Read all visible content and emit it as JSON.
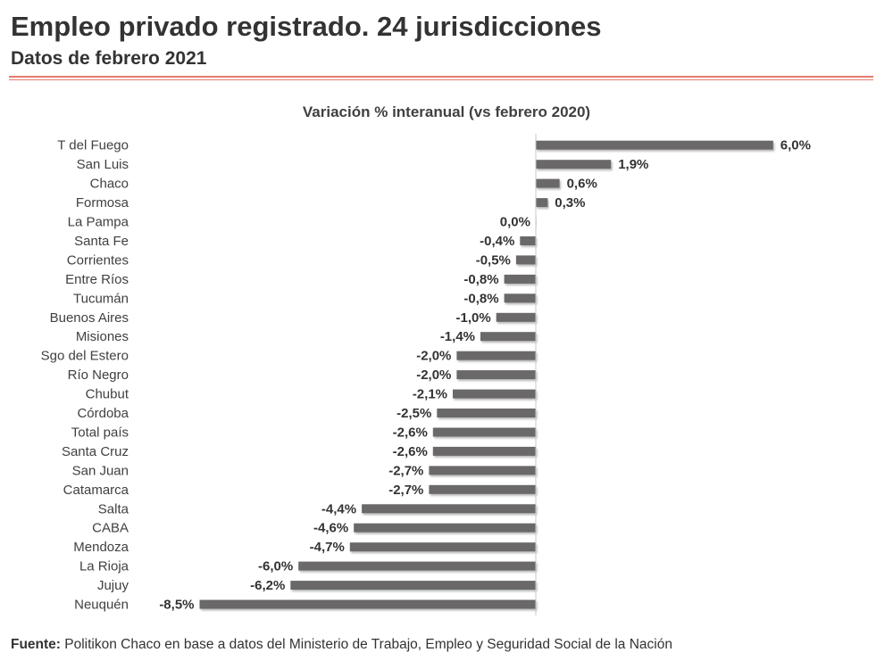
{
  "header": {
    "title": "Empleo privado registrado. 24 jurisdicciones",
    "subtitle": "Datos de febrero 2021"
  },
  "colors": {
    "bar": "#6b6767",
    "accent_rule": "#e57b70"
  },
  "chart_data": {
    "type": "bar",
    "orientation": "horizontal",
    "title": "Variación % interanual (vs febrero 2020)",
    "xlabel": "",
    "ylabel": "",
    "xlim": [
      -8.5,
      6.0
    ],
    "grid": false,
    "legend": "none",
    "categories": [
      "T del Fuego",
      "San Luis",
      "Chaco",
      "Formosa",
      "La Pampa",
      "Santa Fe",
      "Corrientes",
      "Entre Ríos",
      "Tucumán",
      "Buenos Aires",
      "Misiones",
      "Sgo del Estero",
      "Río Negro",
      "Chubut",
      "Córdoba",
      "Total país",
      "Santa Cruz",
      "San Juan",
      "Catamarca",
      "Salta",
      "CABA",
      "Mendoza",
      "La Rioja",
      "Jujuy",
      "Neuquén"
    ],
    "values": [
      6.0,
      1.9,
      0.6,
      0.3,
      0.0,
      -0.4,
      -0.5,
      -0.8,
      -0.8,
      -1.0,
      -1.4,
      -2.0,
      -2.0,
      -2.1,
      -2.5,
      -2.6,
      -2.6,
      -2.7,
      -2.7,
      -4.4,
      -4.6,
      -4.7,
      -6.0,
      -6.2,
      -8.5
    ],
    "value_labels": [
      "6,0%",
      "1,9%",
      "0,6%",
      "0,3%",
      "0,0%",
      "-0,4%",
      "-0,5%",
      "-0,8%",
      "-0,8%",
      "-1,0%",
      "-1,4%",
      "-2,0%",
      "-2,0%",
      "-2,1%",
      "-2,5%",
      "-2,6%",
      "-2,6%",
      "-2,7%",
      "-2,7%",
      "-4,4%",
      "-4,6%",
      "-4,7%",
      "-6,0%",
      "-6,2%",
      "-8,5%"
    ]
  },
  "footer": {
    "label": "Fuente:",
    "text": " Politikon Chaco en base a datos del Ministerio de Trabajo, Empleo y Seguridad Social de la Nación"
  }
}
